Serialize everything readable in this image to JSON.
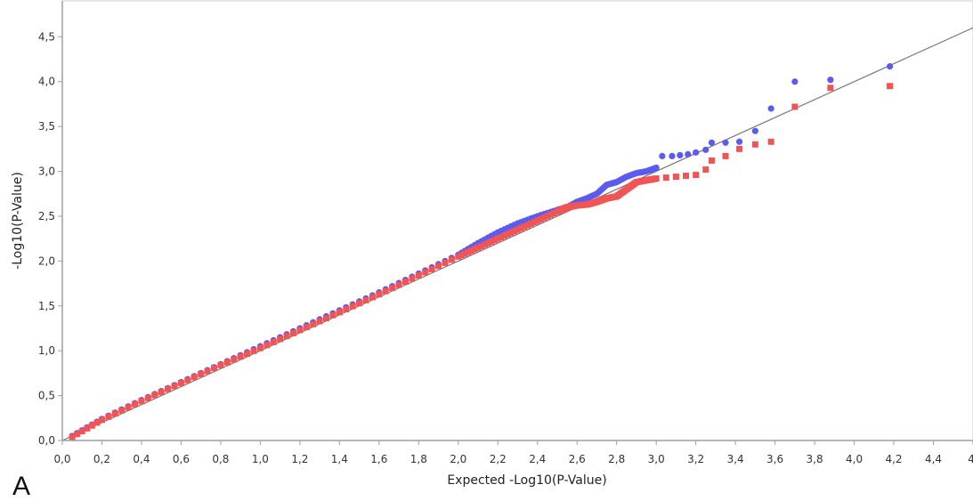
{
  "figure": {
    "panel_label": "A"
  },
  "chart_data": {
    "type": "scatter",
    "xlabel": "Expected -Log10(P-Value)",
    "ylabel": "-Log10(P-Value)",
    "xlim": [
      0,
      4.6
    ],
    "ylim": [
      0,
      4.9
    ],
    "x_ticks": [
      "0,0",
      "0,2",
      "0,4",
      "0,6",
      "0,8",
      "1,0",
      "1,2",
      "1,4",
      "1,6",
      "1,8",
      "2,0",
      "2,2",
      "2,4",
      "2,6",
      "2,8",
      "3,0",
      "3,2",
      "3,4",
      "3,6",
      "3,8",
      "4,0",
      "4,2",
      "4,4",
      "4,"
    ],
    "y_ticks": [
      "0,0",
      "0,5",
      "1,0",
      "1,5",
      "2,0",
      "2,5",
      "3,0",
      "3,5",
      "4,0",
      "4,5"
    ],
    "grid": false,
    "reference_line": {
      "slope": 1,
      "intercept": 0,
      "color": "#777777"
    },
    "colors": {
      "blue": "#5b5bf0",
      "red": "#f05454",
      "axis": "#9aa0aa"
    },
    "series": [
      {
        "color": "#5b5bf0",
        "marker": "circle",
        "points": [
          [
            0.05,
            0.05
          ],
          [
            0.2,
            0.24
          ],
          [
            0.4,
            0.45
          ],
          [
            0.6,
            0.65
          ],
          [
            0.8,
            0.85
          ],
          [
            1.0,
            1.05
          ],
          [
            1.2,
            1.25
          ],
          [
            1.4,
            1.45
          ],
          [
            1.6,
            1.65
          ],
          [
            1.8,
            1.86
          ],
          [
            2.0,
            2.07
          ],
          [
            2.1,
            2.2
          ],
          [
            2.2,
            2.32
          ],
          [
            2.3,
            2.42
          ],
          [
            2.4,
            2.5
          ],
          [
            2.5,
            2.57
          ],
          [
            2.55,
            2.6
          ],
          [
            2.6,
            2.66
          ],
          [
            2.65,
            2.7
          ],
          [
            2.7,
            2.75
          ],
          [
            2.75,
            2.85
          ],
          [
            2.8,
            2.88
          ],
          [
            2.85,
            2.94
          ],
          [
            2.9,
            2.98
          ],
          [
            2.95,
            3.0
          ],
          [
            3.0,
            3.04
          ],
          [
            3.03,
            3.17
          ],
          [
            3.08,
            3.17
          ],
          [
            3.12,
            3.18
          ],
          [
            3.16,
            3.19
          ],
          [
            3.2,
            3.21
          ],
          [
            3.25,
            3.24
          ],
          [
            3.28,
            3.32
          ],
          [
            3.35,
            3.32
          ],
          [
            3.42,
            3.33
          ],
          [
            3.5,
            3.45
          ],
          [
            3.58,
            3.7
          ],
          [
            3.7,
            4.0
          ],
          [
            3.88,
            4.02
          ],
          [
            4.18,
            4.17
          ]
        ]
      },
      {
        "color": "#f05454",
        "marker": "square",
        "points": [
          [
            0.05,
            0.04
          ],
          [
            0.2,
            0.23
          ],
          [
            0.4,
            0.44
          ],
          [
            0.6,
            0.64
          ],
          [
            0.8,
            0.84
          ],
          [
            1.0,
            1.03
          ],
          [
            1.2,
            1.23
          ],
          [
            1.4,
            1.43
          ],
          [
            1.6,
            1.63
          ],
          [
            1.8,
            1.84
          ],
          [
            2.0,
            2.05
          ],
          [
            2.1,
            2.15
          ],
          [
            2.2,
            2.25
          ],
          [
            2.3,
            2.35
          ],
          [
            2.4,
            2.45
          ],
          [
            2.5,
            2.55
          ],
          [
            2.55,
            2.6
          ],
          [
            2.6,
            2.62
          ],
          [
            2.65,
            2.63
          ],
          [
            2.7,
            2.66
          ],
          [
            2.75,
            2.7
          ],
          [
            2.8,
            2.72
          ],
          [
            2.85,
            2.8
          ],
          [
            2.9,
            2.88
          ],
          [
            2.95,
            2.9
          ],
          [
            3.0,
            2.92
          ],
          [
            3.05,
            2.93
          ],
          [
            3.1,
            2.94
          ],
          [
            3.15,
            2.95
          ],
          [
            3.2,
            2.96
          ],
          [
            3.25,
            3.02
          ],
          [
            3.28,
            3.12
          ],
          [
            3.35,
            3.17
          ],
          [
            3.42,
            3.25
          ],
          [
            3.5,
            3.3
          ],
          [
            3.58,
            3.33
          ],
          [
            3.7,
            3.72
          ],
          [
            3.88,
            3.93
          ],
          [
            4.18,
            3.95
          ]
        ]
      }
    ]
  }
}
